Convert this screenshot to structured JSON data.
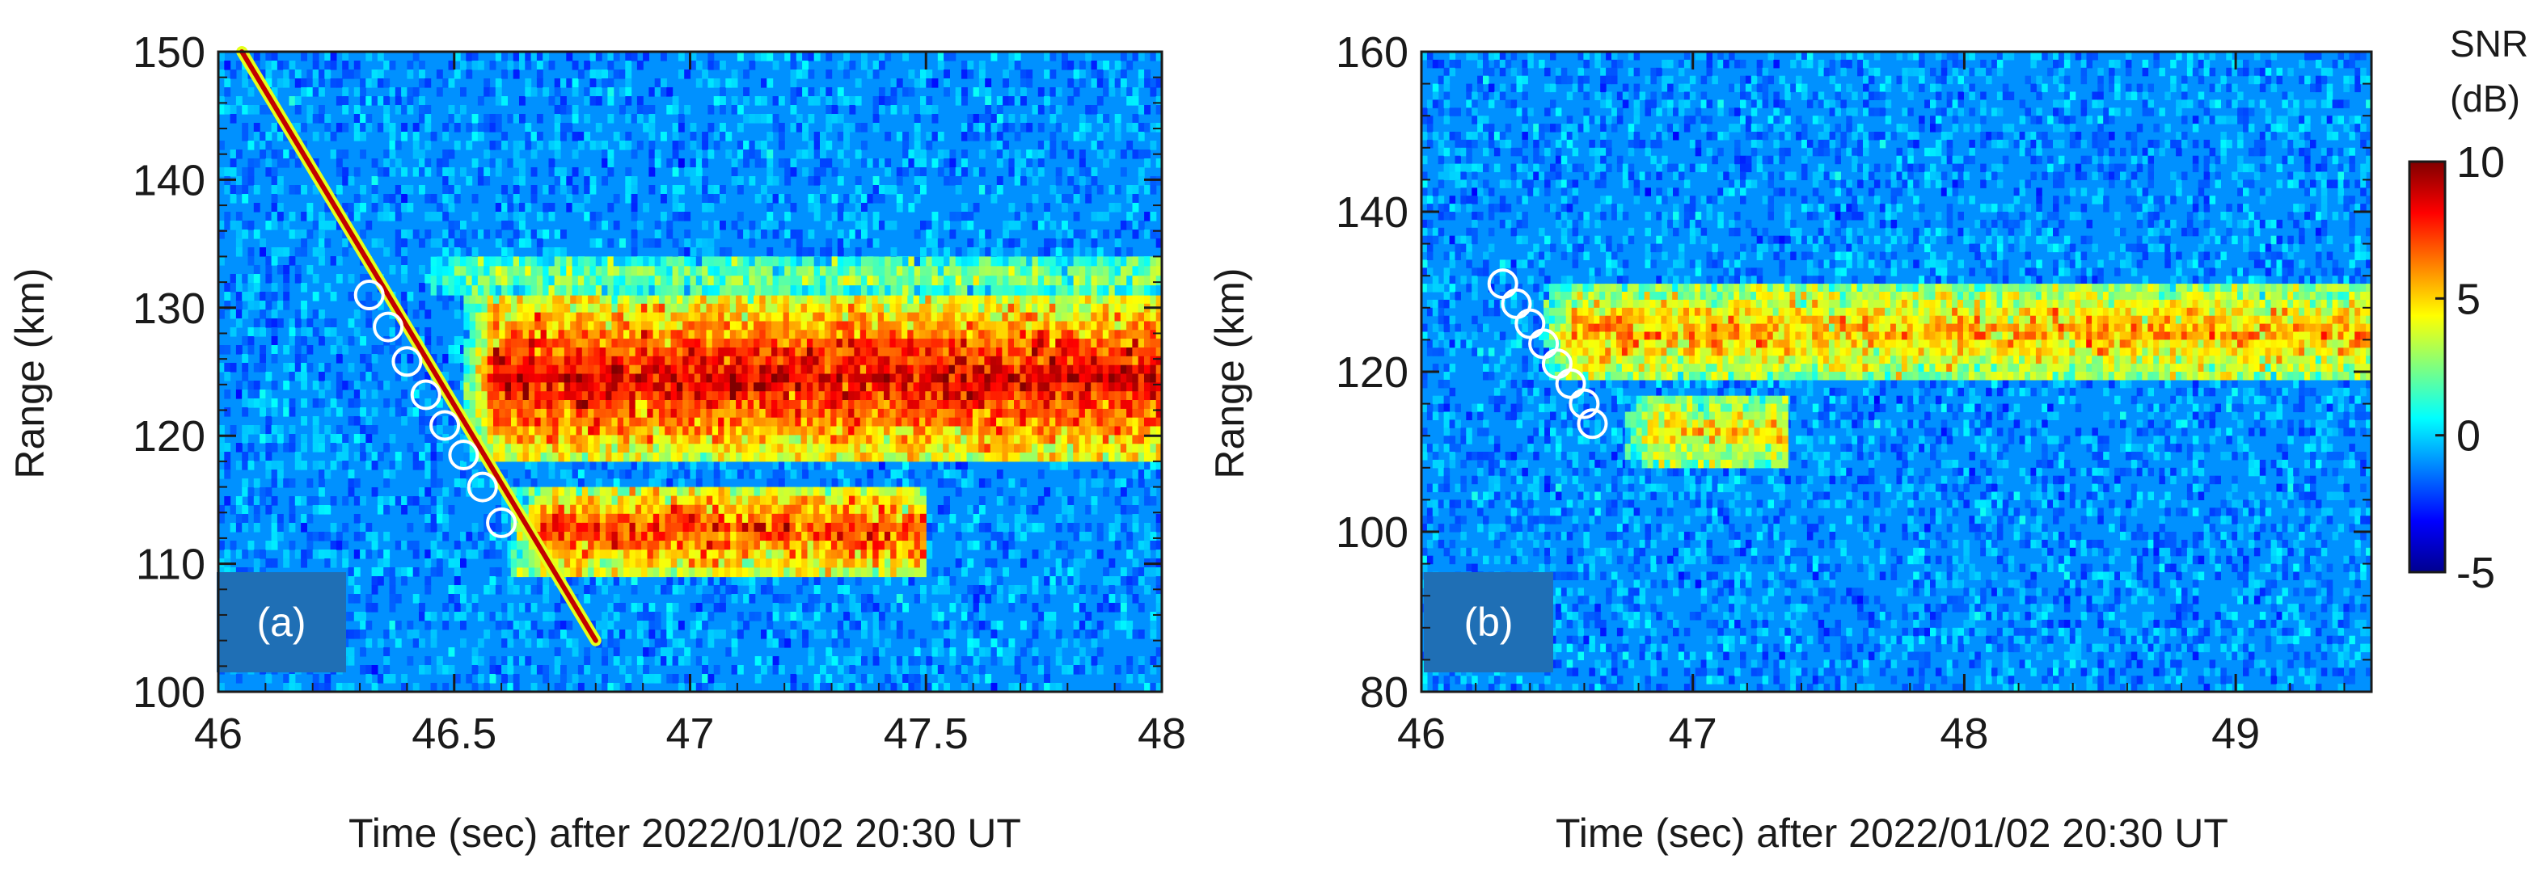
{
  "chart_data": [
    {
      "panel": "(a)",
      "type": "heatmap",
      "xlabel": "Time (sec) after 2022/01/02  20:30 UT",
      "ylabel": "Range (km)",
      "xlim": [
        46,
        48
      ],
      "ylim": [
        100,
        150
      ],
      "xticks": [
        46,
        46.5,
        47,
        47.5,
        48
      ],
      "xtick_labels": [
        "46",
        "46.5",
        "47",
        "47.5",
        "48"
      ],
      "yticks": [
        100,
        110,
        120,
        130,
        140,
        150
      ],
      "ytick_labels": [
        "100",
        "110",
        "120",
        "130",
        "140",
        "150"
      ],
      "background_snr_db": -1,
      "head_echo": {
        "start": [
          46.05,
          150
        ],
        "end": [
          46.8,
          104
        ]
      },
      "circles": [
        [
          46.32,
          131
        ],
        [
          46.36,
          128.5
        ],
        [
          46.4,
          125.8
        ],
        [
          46.44,
          123.2
        ],
        [
          46.48,
          120.8
        ],
        [
          46.52,
          118.5
        ],
        [
          46.56,
          116
        ],
        [
          46.6,
          113.2
        ]
      ],
      "trail_regions": [
        {
          "t_start": 46.52,
          "t_end": 48.0,
          "r_min": 118,
          "r_max": 131,
          "snr_db": 9
        },
        {
          "t_start": 46.62,
          "t_end": 47.5,
          "r_min": 109,
          "r_max": 116,
          "snr_db": 8
        },
        {
          "t_start": 46.45,
          "t_end": 48.0,
          "r_min": 131,
          "r_max": 134,
          "snr_db": 3
        }
      ]
    },
    {
      "panel": "(b)",
      "type": "heatmap",
      "xlabel": "Time (sec) after 2022/01/02  20:30 UT",
      "ylabel": "Range (km)",
      "xlim": [
        46,
        49.5
      ],
      "ylim": [
        80,
        160
      ],
      "xticks": [
        46,
        47,
        48,
        49
      ],
      "xtick_labels": [
        "46",
        "47",
        "48",
        "49"
      ],
      "yticks": [
        80,
        100,
        120,
        140,
        160
      ],
      "ytick_labels": [
        "80",
        "100",
        "120",
        "140",
        "160"
      ],
      "background_snr_db": -1,
      "circles": [
        [
          46.3,
          131
        ],
        [
          46.35,
          128.5
        ],
        [
          46.4,
          126
        ],
        [
          46.45,
          123.5
        ],
        [
          46.5,
          121
        ],
        [
          46.55,
          118.5
        ],
        [
          46.6,
          116
        ],
        [
          46.63,
          113.5
        ]
      ],
      "trail_regions": [
        {
          "t_start": 46.45,
          "t_end": 49.5,
          "r_min": 119,
          "r_max": 131,
          "snr_db": 6
        },
        {
          "t_start": 46.75,
          "t_end": 47.35,
          "r_min": 108,
          "r_max": 117,
          "snr_db": 5
        }
      ]
    }
  ],
  "colorbar": {
    "title_line1": "SNR",
    "title_line2": "(dB)",
    "range": [
      -5,
      10
    ],
    "ticks": [
      10,
      5,
      0,
      -5
    ],
    "tick_labels": [
      "10",
      "5",
      "0",
      "-5"
    ],
    "colormap": "jet"
  },
  "colors": {
    "circle_stroke": "#ffffff",
    "label_box": "#1f6fb5",
    "axis": "#1a1a1a"
  }
}
